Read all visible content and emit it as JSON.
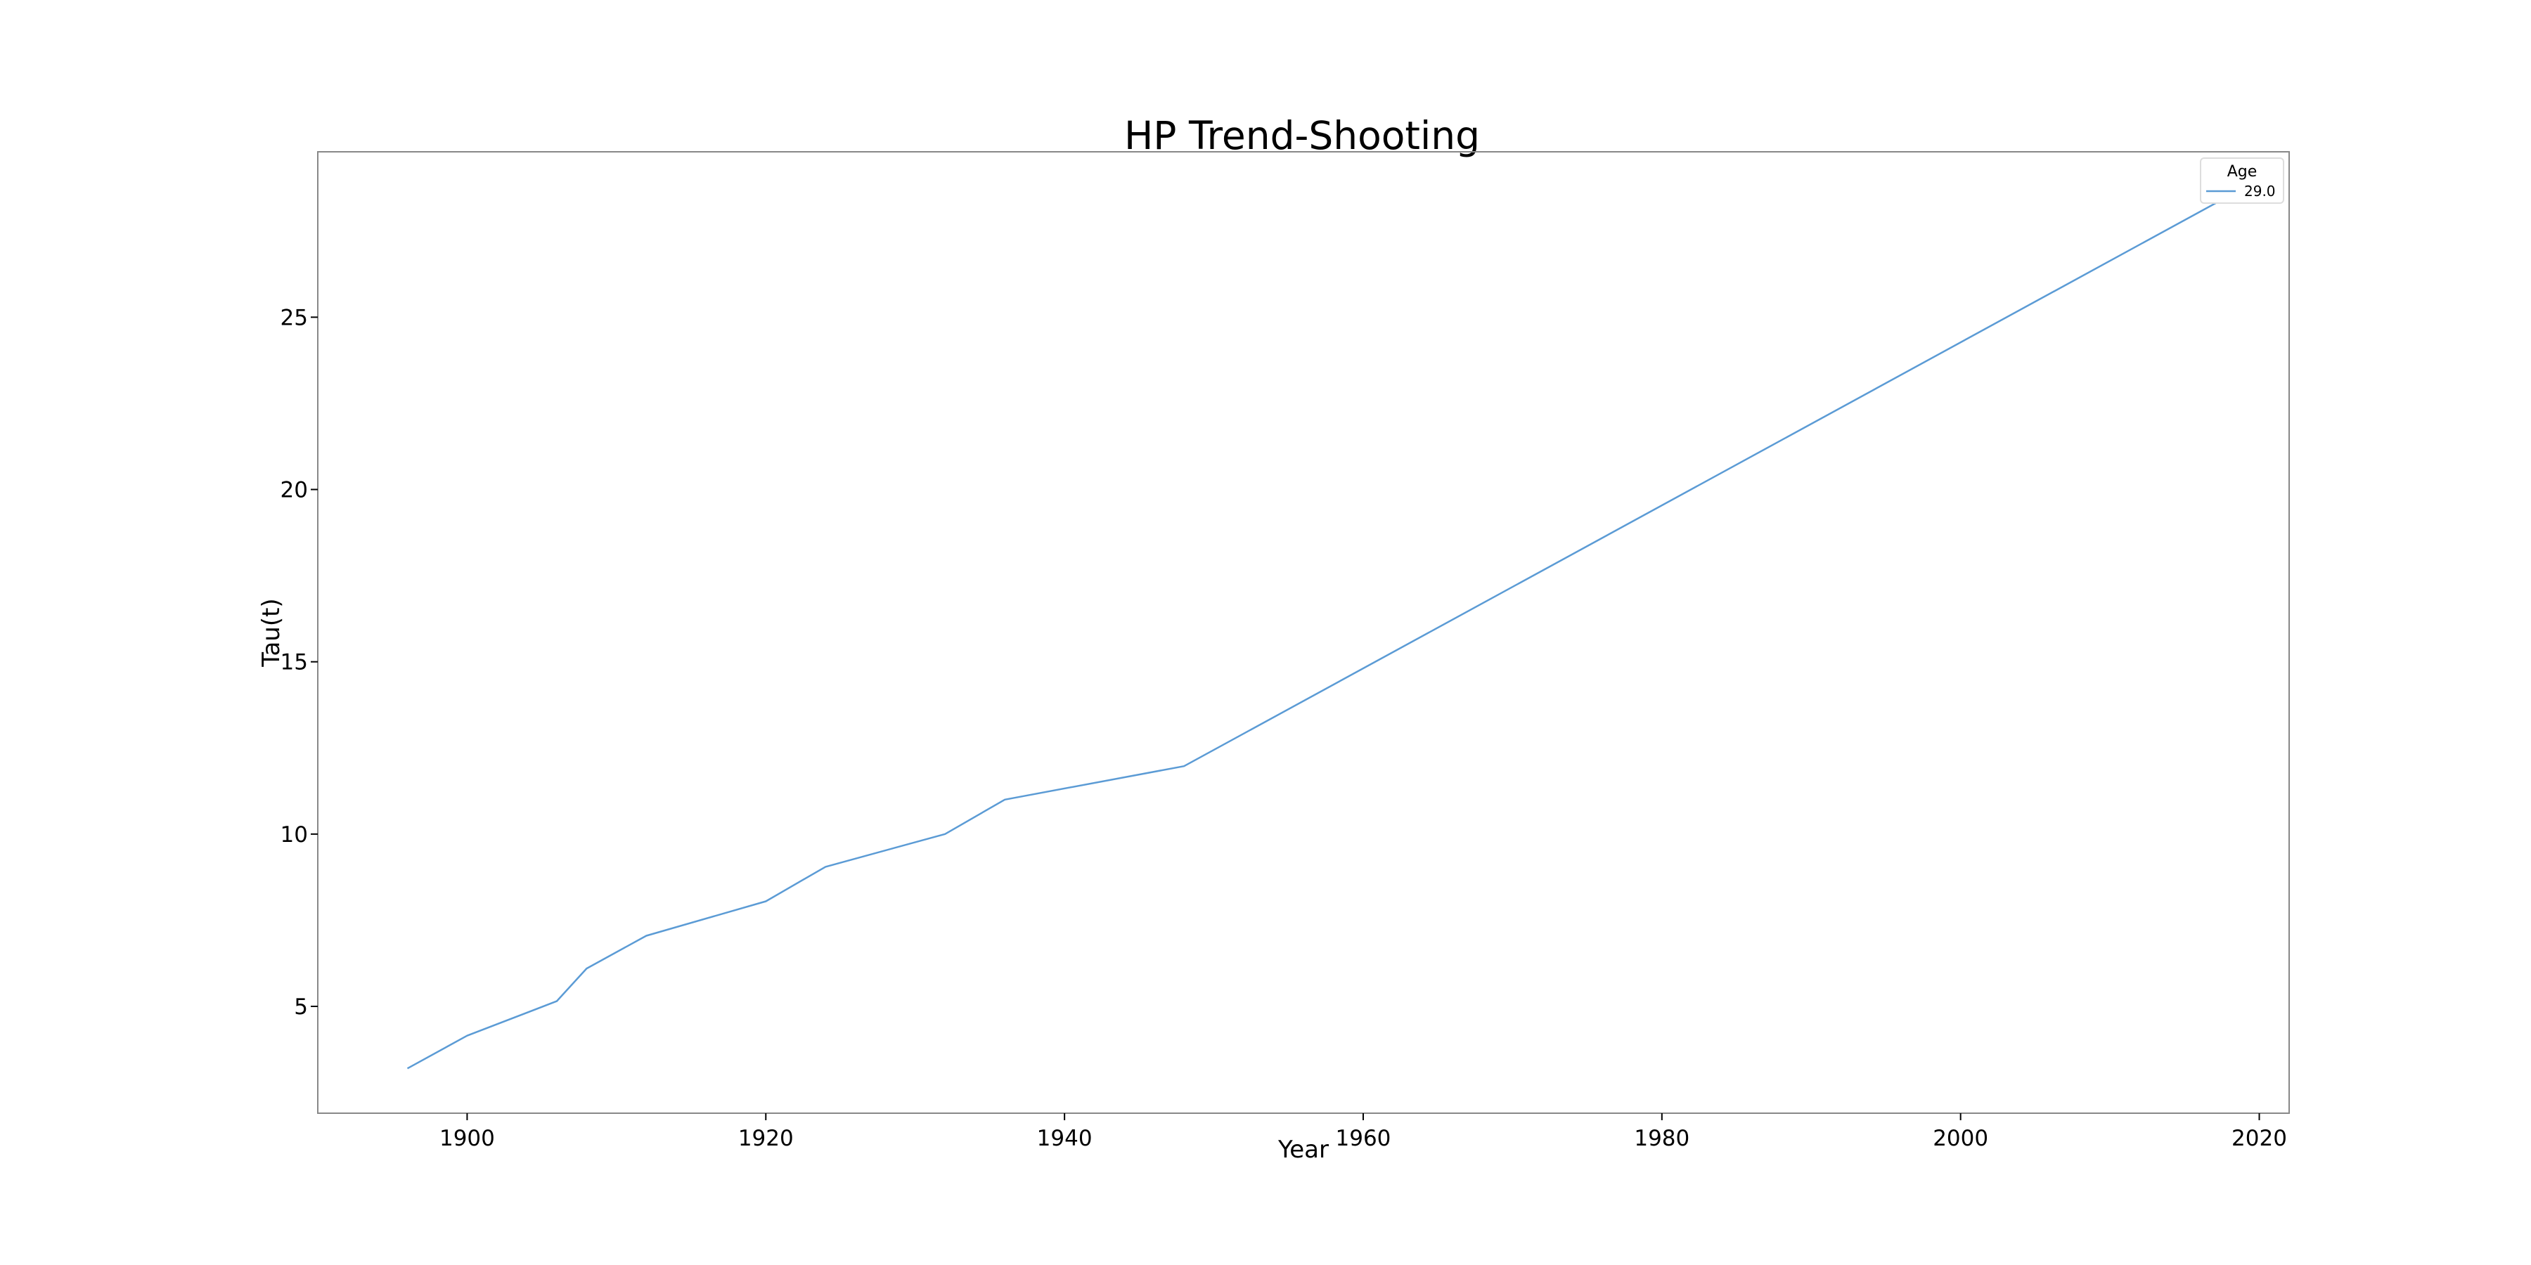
{
  "chart_data": {
    "type": "line",
    "title": "HP Trend-Shooting",
    "xlabel": "Year",
    "ylabel": "Tau(t)",
    "xlim": [
      1890,
      2022
    ],
    "ylim": [
      1.9,
      29.8
    ],
    "xticks": [
      1900,
      1920,
      1940,
      1960,
      1980,
      2000,
      2020
    ],
    "yticks": [
      5,
      10,
      15,
      20,
      25
    ],
    "grid": false,
    "legend": {
      "title": "Age",
      "placement": "top-right"
    },
    "series": [
      {
        "name": "29.0",
        "color": "#5b9bd5",
        "x": [
          1896,
          1900,
          1906,
          1908,
          1912,
          1920,
          1924,
          1932,
          1936,
          1948,
          2020
        ],
        "y": [
          3.2,
          4.15,
          5.15,
          6.1,
          7.05,
          8.05,
          9.05,
          10.0,
          11.0,
          11.97,
          29.0
        ]
      }
    ]
  }
}
